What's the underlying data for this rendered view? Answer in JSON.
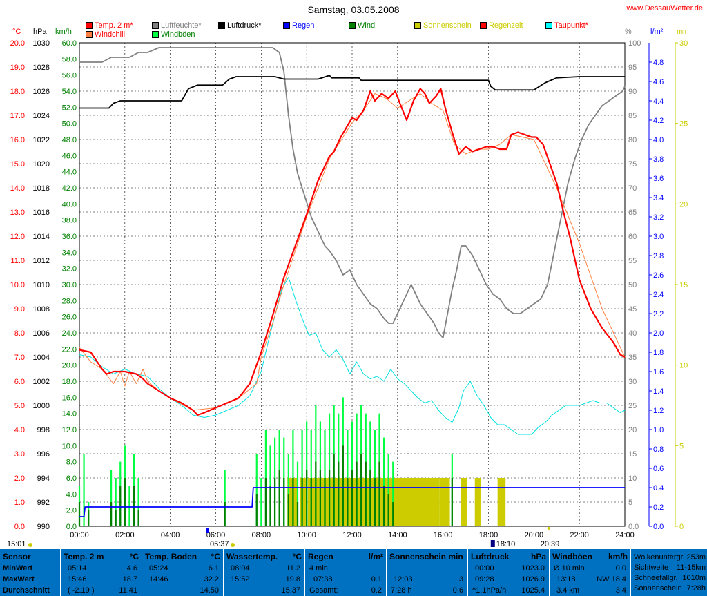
{
  "header": {
    "title": "Samstag, 03.05.2008",
    "site": "www.DessauWetter.de"
  },
  "legend": [
    {
      "name": "Temp. 2 m*",
      "color": "#ff0000",
      "text_color": "#ff0000"
    },
    {
      "name": "Luftfeuchte*",
      "color": "#808080",
      "text_color": "#808080"
    },
    {
      "name": "Luftdruck*",
      "color": "#000000",
      "text_color": "#000000"
    },
    {
      "name": "Regen",
      "color": "#0000ff",
      "text_color": "#0000ff"
    },
    {
      "name": "Wind",
      "color": "#008000",
      "text_color": "#008000"
    },
    {
      "name": "Sonnenschein",
      "color": "#cccc00",
      "text_color": "#cccc00"
    },
    {
      "name": "Regenzeit",
      "color": "#ff0000",
      "text_color": "#cccc00"
    },
    {
      "name": "Taupunkt*",
      "color": "#00ffff",
      "text_color": "#ff0000"
    },
    {
      "name": "Windchill",
      "color": "#ff8040",
      "text_color": "#ff0000"
    },
    {
      "name": "Windböen",
      "color": "#00ff40",
      "text_color": "#008000"
    }
  ],
  "units": {
    "temp": "°C",
    "press": "hPa",
    "wind": "km/h",
    "hum": "%",
    "rain": "l/m²",
    "sun": "min"
  },
  "colors": {
    "temp": "#ff0000",
    "dew": "#00e0e0",
    "hum": "#808080",
    "press": "#000000",
    "rain": "#0000ff",
    "wind": "#008000",
    "gust": "#00ff40",
    "sun": "#cccc00",
    "windchill": "#ff8040"
  },
  "markers": {
    "sunrise": "05:37",
    "sunset": "20:39",
    "rain_event": "18:10",
    "left_time": "15:01"
  },
  "chart_data": {
    "type": "line",
    "title": "Samstag, 03.05.2008",
    "x_range": [
      0,
      24
    ],
    "xticks": [
      "00:00",
      "02:00",
      "04:00",
      "06:00",
      "08:00",
      "10:00",
      "12:00",
      "14:00",
      "16:00",
      "18:00",
      "20:00",
      "22:00",
      "24:00"
    ],
    "axes": {
      "temp": {
        "range": [
          0,
          20
        ],
        "ticks": [
          "0.0",
          "1.0",
          "2.0",
          "3.0",
          "4.0",
          "5.0",
          "6.0",
          "7.0",
          "8.0",
          "9.0",
          "10.0",
          "11.0",
          "12.0",
          "13.0",
          "14.0",
          "15.0",
          "16.0",
          "17.0",
          "18.0",
          "19.0",
          "20.0"
        ]
      },
      "press": {
        "range": [
          990,
          1030
        ],
        "ticks": [
          "990",
          "992",
          "994",
          "996",
          "998",
          "1000",
          "1002",
          "1004",
          "1006",
          "1008",
          "1010",
          "1012",
          "1014",
          "1016",
          "1018",
          "1020",
          "1022",
          "1024",
          "1026",
          "1028",
          "1030"
        ]
      },
      "wind": {
        "range": [
          0,
          60
        ],
        "ticks": [
          "0.0",
          "2.0",
          "4.0",
          "6.0",
          "8.0",
          "10.0",
          "12.0",
          "14.0",
          "16.0",
          "18.0",
          "20.0",
          "22.0",
          "24.0",
          "26.0",
          "28.0",
          "30.0",
          "32.0",
          "34.0",
          "36.0",
          "38.0",
          "40.0",
          "42.0",
          "44.0",
          "46.0",
          "48.0",
          "50.0",
          "52.0",
          "54.0",
          "56.0",
          "58.0",
          "60.0"
        ]
      },
      "hum": {
        "range": [
          0,
          100
        ],
        "ticks": [
          "0.0",
          "5",
          "10",
          "15",
          "20",
          "25",
          "30",
          "35",
          "40",
          "45",
          "50",
          "55",
          "60",
          "65",
          "70",
          "75",
          "80",
          "85",
          "90",
          "95",
          "100"
        ]
      },
      "rain": {
        "range": [
          0,
          5
        ],
        "ticks": [
          "0.0",
          "0.2",
          "0.4",
          "0.6",
          "0.8",
          "1.0",
          "1.2",
          "1.4",
          "1.6",
          "1.8",
          "2.0",
          "2.2",
          "2.4",
          "2.6",
          "2.8",
          "3.0",
          "3.2",
          "3.4",
          "3.6",
          "3.8",
          "4.0",
          "4.2",
          "4.4",
          "4.6",
          "4.8"
        ]
      },
      "sun": {
        "range": [
          0,
          30
        ],
        "ticks": [
          "0",
          "5",
          "10",
          "15",
          "20",
          "25",
          "30"
        ]
      }
    },
    "series": [
      {
        "name": "Temp. 2 m*",
        "axis": "temp",
        "x": [
          0,
          0.5,
          1,
          1.2,
          1.5,
          2,
          2.5,
          2.8,
          3,
          3.5,
          4,
          4.5,
          5,
          5.2,
          5.5,
          6,
          6.5,
          7,
          7.5,
          8,
          8.5,
          9,
          9.5,
          10,
          10.5,
          11,
          11.2,
          11.5,
          12,
          12.2,
          12.5,
          12.8,
          13,
          13.3,
          13.6,
          13.9,
          14.1,
          14.4,
          14.7,
          15,
          15.2,
          15.4,
          15.7,
          15.9,
          16.1,
          16.4,
          16.7,
          17,
          17.3,
          17.6,
          17.9,
          18.2,
          18.5,
          18.8,
          19,
          19.3,
          19.6,
          19.9,
          20.1,
          20.4,
          20.7,
          21,
          21.3,
          21.6,
          22,
          22.5,
          23,
          23.5,
          23.8,
          24
        ],
        "values": [
          7.3,
          7.2,
          6.5,
          6.3,
          6.4,
          6.4,
          6.3,
          6.1,
          5.9,
          5.6,
          5.3,
          5.1,
          4.8,
          4.6,
          4.7,
          4.9,
          5.1,
          5.3,
          5.9,
          7.2,
          8.7,
          10.3,
          11.6,
          12.9,
          14.3,
          15.3,
          15.5,
          16.1,
          16.9,
          16.8,
          17.2,
          18,
          17.6,
          17.9,
          17.7,
          18,
          17.5,
          16.8,
          17.6,
          18.1,
          17.9,
          17.5,
          17.8,
          18.1,
          17.3,
          16.3,
          15.4,
          15.7,
          15.5,
          15.6,
          15.7,
          15.7,
          15.6,
          15.6,
          16.2,
          16.3,
          16.2,
          16.1,
          16.1,
          15.8,
          15,
          14.2,
          13,
          11.9,
          10.2,
          9,
          8.2,
          7.6,
          7.1,
          7
        ]
      },
      {
        "name": "Windchill",
        "axis": "temp",
        "x": [
          0,
          0.5,
          1,
          1.5,
          1.8,
          2,
          2.2,
          2.5,
          2.8,
          3,
          3.5,
          4,
          5,
          6,
          7,
          7.8,
          8,
          8.5,
          9,
          10,
          11,
          12,
          12.5,
          13,
          13.5,
          14,
          14.5,
          15,
          15.5,
          16,
          16.5,
          17,
          17.5,
          18,
          18.5,
          19,
          20,
          21,
          22,
          23,
          24
        ],
        "values": [
          7.4,
          6.8,
          6.5,
          5.9,
          6.4,
          5.8,
          6.4,
          5.9,
          6.5,
          6,
          5.6,
          5.3,
          4.8,
          4.9,
          5.3,
          5.9,
          7,
          8.4,
          10,
          12.8,
          15.2,
          16.7,
          17.2,
          17.9,
          17.7,
          17.3,
          17.6,
          17.9,
          17.5,
          17.2,
          15.8,
          15.4,
          15.6,
          15.6,
          15.8,
          16.2,
          16,
          14,
          11.7,
          9,
          7
        ]
      },
      {
        "name": "Taupunkt*",
        "axis": "temp",
        "x": [
          0,
          0.5,
          1,
          1.5,
          2,
          2.5,
          3,
          3.5,
          4,
          4.5,
          5,
          5.5,
          6,
          6.5,
          7,
          7.5,
          8,
          8.3,
          8.6,
          8.9,
          9.2,
          9.5,
          9.8,
          10.1,
          10.4,
          10.7,
          11,
          11.3,
          11.6,
          11.9,
          12.2,
          12.5,
          12.8,
          13.1,
          13.4,
          13.7,
          14,
          14.3,
          14.6,
          14.9,
          15.2,
          15.5,
          15.8,
          16.1,
          16.4,
          16.7,
          16.9,
          17.2,
          17.5,
          17.8,
          18.1,
          18.4,
          18.7,
          19,
          19.3,
          19.6,
          19.9,
          20.2,
          20.5,
          20.8,
          21.1,
          21.4,
          21.7,
          22,
          22.3,
          22.6,
          22.9,
          23.2,
          23.5,
          23.8,
          24
        ],
        "values": [
          7.1,
          7,
          6.6,
          6.3,
          6.5,
          6.3,
          6.2,
          5.7,
          5.3,
          5,
          4.6,
          4.5,
          4.6,
          4.8,
          5,
          5.4,
          6.4,
          7.6,
          8.7,
          9.8,
          10.3,
          9.4,
          8.6,
          7.9,
          8,
          7.3,
          7,
          7.3,
          6.9,
          6.3,
          6.8,
          6.3,
          6.1,
          6.2,
          6,
          6.5,
          6.1,
          5.9,
          5.6,
          5.3,
          5.1,
          5.2,
          4.8,
          4.5,
          4.3,
          4.9,
          5.6,
          6,
          5.4,
          5,
          4.5,
          4.2,
          4.2,
          4,
          3.8,
          3.8,
          3.8,
          4.1,
          4.3,
          4.6,
          4.8,
          5,
          5,
          5,
          5.1,
          5.2,
          5.1,
          5.1,
          4.9,
          4.7,
          4.8
        ]
      },
      {
        "name": "Luftfeuchte*",
        "axis": "hum",
        "x": [
          0,
          0.5,
          1,
          1.4,
          1.8,
          2.2,
          2.6,
          3,
          3.5,
          4,
          5,
          6,
          7,
          8,
          8.5,
          8.8,
          9,
          9.2,
          9.4,
          9.6,
          9.8,
          10,
          10.2,
          10.4,
          10.6,
          10.8,
          11,
          11.3,
          11.6,
          11.9,
          12.2,
          12.5,
          12.8,
          13.1,
          13.4,
          13.6,
          13.8,
          14,
          14.2,
          14.4,
          14.6,
          14.8,
          15,
          15.3,
          15.6,
          15.8,
          16,
          16.2,
          16.4,
          16.6,
          16.8,
          17,
          17.3,
          17.6,
          17.9,
          18.2,
          18.5,
          18.8,
          19.1,
          19.4,
          19.7,
          20,
          20.3,
          20.6,
          20.9,
          21.2,
          21.5,
          21.8,
          22.1,
          22.4,
          22.7,
          23,
          23.3,
          23.6,
          23.9,
          24
        ],
        "values": [
          96,
          96,
          96,
          97,
          97,
          97,
          98,
          98,
          99,
          99,
          99,
          99,
          99,
          99,
          99,
          98,
          94,
          85,
          78,
          73,
          70,
          67,
          64,
          62,
          60,
          58,
          57,
          55,
          52,
          53,
          50,
          48,
          46,
          45,
          43,
          42,
          42,
          44,
          46,
          48,
          50,
          48,
          46,
          44,
          42,
          40,
          39,
          44,
          49,
          53,
          58,
          58,
          56,
          53,
          50,
          48,
          47,
          45,
          44,
          44,
          45,
          46,
          47,
          50,
          57,
          64,
          71,
          76,
          80,
          83,
          85,
          87,
          88,
          89,
          90,
          91
        ]
      },
      {
        "name": "Luftdruck*",
        "axis": "press",
        "x": [
          0,
          1.3,
          1.5,
          1.8,
          4.5,
          4.8,
          5.2,
          6.3,
          6.6,
          6.9,
          7,
          8.3,
          8.6,
          9,
          10.5,
          11,
          11.1,
          12.3,
          12.4,
          14,
          16,
          18,
          18.1,
          18.3,
          18.5,
          19,
          20,
          20.5,
          21,
          22,
          23,
          24
        ],
        "values": [
          1024.6,
          1024.6,
          1025,
          1025.2,
          1025.2,
          1026.2,
          1026.5,
          1026.5,
          1027,
          1027.2,
          1027.2,
          1027.2,
          1027.2,
          1027,
          1027,
          1027.3,
          1027.1,
          1027.1,
          1026.9,
          1026.9,
          1026.9,
          1026.9,
          1026.4,
          1026.1,
          1026.1,
          1026.1,
          1026.1,
          1026.7,
          1027.1,
          1027.2,
          1027.2,
          1027.2
        ]
      },
      {
        "name": "Regen",
        "axis": "rain",
        "x": [
          0,
          0.2,
          0.25,
          7.6,
          7.65,
          24
        ],
        "values": [
          0.1,
          0.1,
          0.2,
          0.2,
          0.4,
          0.4
        ]
      }
    ],
    "wind": {
      "name": "Wind",
      "axis": "wind",
      "sample_step_h": 0.2,
      "values": [
        3,
        0,
        2,
        0,
        0,
        0,
        0,
        3,
        2,
        5,
        6,
        0,
        5,
        2,
        0,
        0,
        0,
        0,
        0,
        0,
        0,
        0,
        0,
        0,
        0,
        0,
        0,
        0,
        0,
        0,
        0,
        0,
        3,
        0,
        0,
        0,
        0,
        0,
        0,
        4,
        0,
        6,
        5,
        6,
        7,
        6,
        4,
        6,
        3,
        6,
        7,
        6,
        8,
        7,
        6,
        7,
        9,
        8,
        10,
        6,
        7,
        8,
        9,
        8,
        7,
        6,
        8,
        5,
        4,
        3,
        0,
        0,
        0,
        0,
        0,
        0,
        0,
        0,
        0,
        0,
        0,
        0,
        6,
        0,
        0,
        0,
        0,
        0,
        0,
        0,
        0,
        0,
        0,
        0,
        0,
        0,
        0,
        0,
        0,
        0,
        0,
        0,
        0,
        0,
        0,
        0,
        0,
        0,
        0,
        0,
        0,
        0,
        0
      ]
    },
    "gust": {
      "name": "Windböen",
      "axis": "wind",
      "sample_step_h": 0.2,
      "values": [
        5,
        9,
        3,
        0,
        0,
        0,
        0,
        7,
        6,
        8,
        10,
        5,
        9,
        6,
        0,
        0,
        0,
        0,
        0,
        0,
        0,
        0,
        0,
        0,
        0,
        0,
        0,
        0,
        0,
        0,
        0,
        0,
        7,
        0,
        0,
        0,
        0,
        0,
        0,
        9,
        6,
        12,
        10,
        11,
        12,
        11,
        9,
        12,
        8,
        12,
        13,
        12,
        15,
        13,
        12,
        14,
        15,
        14,
        16,
        12,
        13,
        14,
        15,
        14,
        13,
        12,
        14,
        11,
        9,
        8,
        0,
        0,
        0,
        0,
        0,
        0,
        0,
        0,
        0,
        0,
        0,
        0,
        9,
        0,
        0,
        0,
        0,
        0,
        0,
        0,
        0,
        0,
        0,
        0,
        0,
        0,
        0,
        0,
        0,
        0,
        0,
        0,
        0,
        0,
        0,
        0,
        0,
        0,
        0,
        0,
        0,
        0,
        0
      ]
    },
    "sunshine": {
      "name": "Sonnenschein",
      "axis": "sun",
      "value_min": 3,
      "blocks": [
        [
          9.15,
          9.6
        ],
        [
          9.7,
          10.0
        ],
        [
          10.05,
          11.3
        ],
        [
          11.3,
          13.5
        ],
        [
          13.5,
          14.6
        ],
        [
          14.6,
          15.5
        ],
        [
          15.5,
          15.85
        ],
        [
          15.85,
          16.3
        ],
        [
          16.8,
          17.05
        ],
        [
          17.4,
          17.65
        ],
        [
          18.4,
          18.75
        ]
      ]
    }
  },
  "stats": {
    "headers": [
      "Sensor",
      "Temp. 2 m",
      "Temp. Boden",
      "Wassertemp.",
      "Regen",
      "Sonnenschein min",
      "Luftdruck",
      "Windböen"
    ],
    "header_units": [
      "",
      "°C",
      "°C",
      "°C",
      "l/m²",
      "",
      "hPa",
      "km/h"
    ],
    "row_labels": [
      "MinWert",
      "MaxWert",
      "Durchschnitt"
    ],
    "temp": [
      [
        "05:14",
        "4.6"
      ],
      [
        "15:46",
        "18.7"
      ],
      [
        "( -2.19 )",
        "11.41"
      ]
    ],
    "boden": [
      [
        "05:24",
        "6.1"
      ],
      [
        "14:46",
        "32.2"
      ],
      [
        "",
        "14.50"
      ]
    ],
    "wasser": [
      [
        "08:04",
        "11.2"
      ],
      [
        "15:52",
        "19.8"
      ],
      [
        "",
        "15.37"
      ]
    ],
    "regen": [
      [
        "4 min.",
        ""
      ],
      [
        "07:38",
        "0.1"
      ],
      [
        "Gesamt:",
        "0.2"
      ]
    ],
    "sonne": [
      [
        "",
        ""
      ],
      [
        "12:03",
        "3"
      ],
      [
        "7:28 h",
        "0.6"
      ]
    ],
    "druck": [
      [
        "00:00",
        "1023.0"
      ],
      [
        "09:28",
        "1026.9"
      ],
      [
        "^1.1hPa/h",
        "1025.4"
      ]
    ],
    "boeen": [
      [
        "Ø 10 min.",
        "0.0"
      ],
      [
        "13:18",
        "NW 18.4"
      ],
      [
        "3.4 km",
        "3.4"
      ]
    ],
    "extra": [
      [
        "Wolkenuntergr.",
        "253m"
      ],
      [
        "Sichtweite",
        "11-15km"
      ],
      [
        "Schneefallgr.",
        "1010m"
      ],
      [
        "Sonnenschein",
        "7:28h"
      ]
    ]
  }
}
